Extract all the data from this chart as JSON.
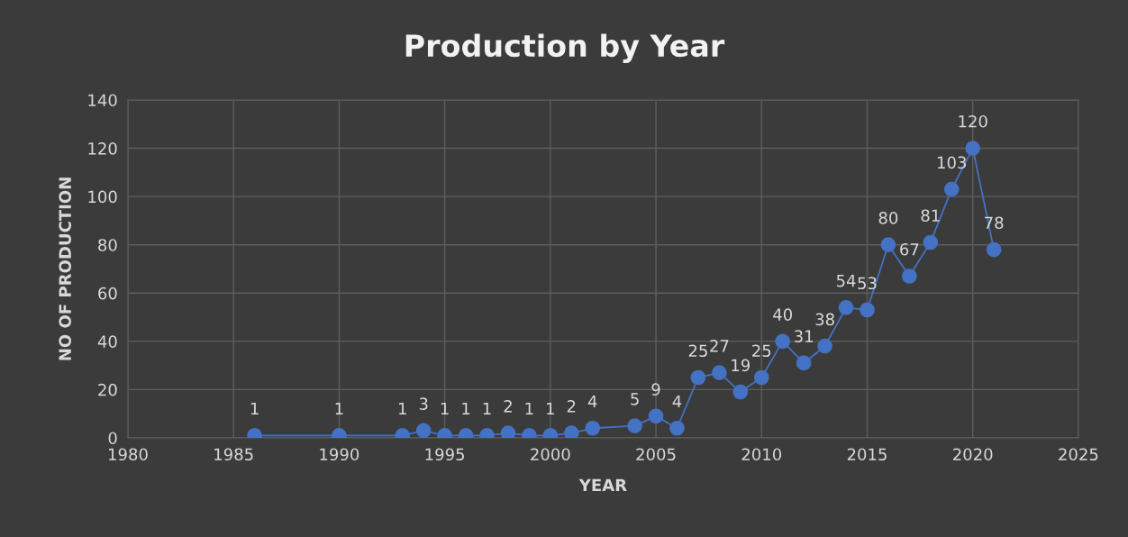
{
  "chart_data": {
    "type": "line",
    "title": "Production by Year",
    "xlabel": "YEAR",
    "ylabel": "NO OF PRODUCTION",
    "x": [
      1986,
      1990,
      1993,
      1994,
      1995,
      1996,
      1997,
      1998,
      1999,
      2000,
      2001,
      2002,
      2004,
      2005,
      2006,
      2007,
      2008,
      2009,
      2010,
      2011,
      2012,
      2013,
      2014,
      2015,
      2016,
      2017,
      2018,
      2019,
      2020,
      2021
    ],
    "series": [
      {
        "color": "#4472c4",
        "values": [
          1,
          1,
          1,
          3,
          1,
          1,
          1,
          2,
          1,
          1,
          2,
          4,
          5,
          9,
          4,
          25,
          27,
          19,
          25,
          40,
          31,
          38,
          54,
          53,
          80,
          67,
          81,
          103,
          120,
          78
        ]
      }
    ],
    "xlim": [
      1980,
      2025
    ],
    "xticks": [
      1980,
      1985,
      1990,
      1995,
      2000,
      2005,
      2010,
      2015,
      2020,
      2025
    ],
    "ylim": [
      0,
      140
    ],
    "yticks": [
      0,
      20,
      40,
      60,
      80,
      100,
      120,
      140
    ],
    "grid": true,
    "marker": "circle",
    "line_style": "solid",
    "data_labels": true
  }
}
